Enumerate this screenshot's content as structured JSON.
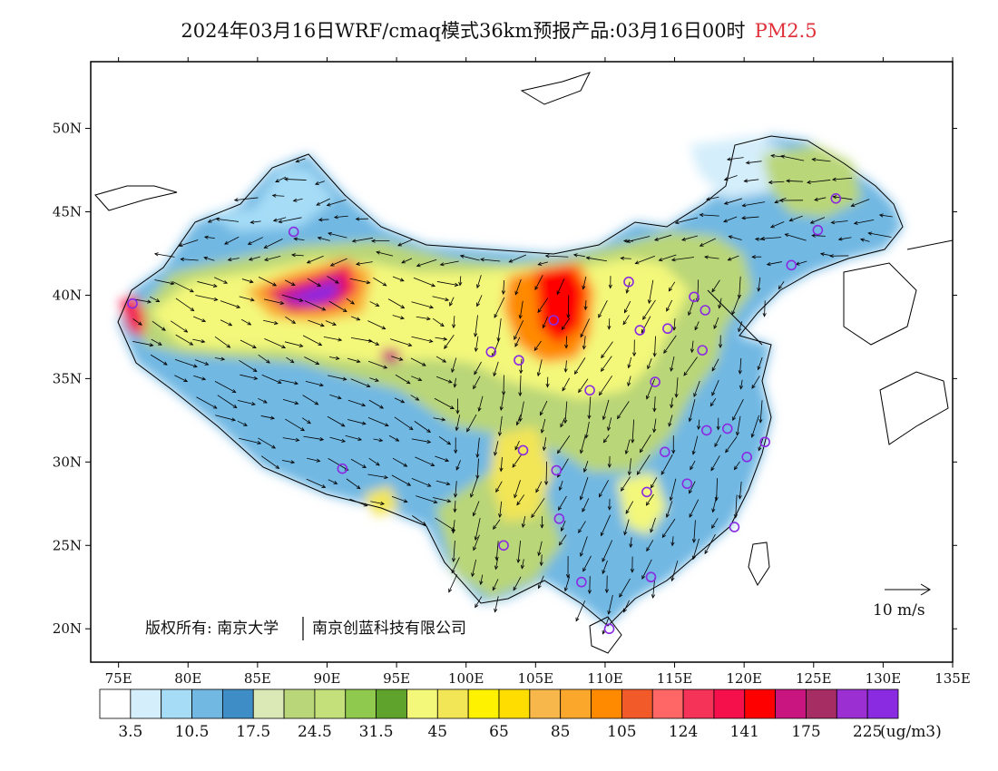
{
  "header": {
    "title": "2024年03月16日WRF/cmaq模式36km预报产品:03月16日00时",
    "variable": "PM2.5"
  },
  "chart_data": {
    "type": "heatmap",
    "title": "2024年03月16日WRF/cmaq模式36km预报产品:03月16日00时 PM2.5",
    "variable": "PM2.5",
    "units": "(ug/m3)",
    "xlim": [
      73,
      135
    ],
    "ylim": [
      18,
      54
    ],
    "x_ticks": [
      "75E",
      "80E",
      "85E",
      "90E",
      "95E",
      "100E",
      "105E",
      "110E",
      "115E",
      "120E",
      "125E",
      "130E",
      "135E"
    ],
    "y_ticks": [
      "20N",
      "25N",
      "30N",
      "35N",
      "40N",
      "45N",
      "50N"
    ],
    "colorbar": {
      "colors": [
        "#ffffff",
        "#d4eefb",
        "#a6dcf6",
        "#71b8e3",
        "#3f8dc6",
        "#dbe9b6",
        "#b9d678",
        "#c3e07a",
        "#8fc94e",
        "#5fa32d",
        "#f3f87a",
        "#f2e556",
        "#fff200",
        "#ffdd00",
        "#f7b74a",
        "#faa72c",
        "#ff8a00",
        "#f25a2a",
        "#ff6666",
        "#f53359",
        "#f50f4b",
        "#ff0000",
        "#c9157f",
        "#a62d64",
        "#9b2fd1",
        "#8a2be2"
      ],
      "tick_labels": [
        "3.5",
        "10.5",
        "17.5",
        "24.5",
        "31.5",
        "45",
        "65",
        "85",
        "105",
        "124",
        "141",
        "175",
        "225"
      ],
      "units": "(ug/m3)"
    },
    "stations": [
      [
        87.6,
        43.8
      ],
      [
        76.0,
        39.5
      ],
      [
        91.1,
        29.6
      ],
      [
        101.8,
        36.6
      ],
      [
        103.8,
        36.1
      ],
      [
        106.3,
        38.5
      ],
      [
        108.9,
        34.3
      ],
      [
        106.5,
        29.5
      ],
      [
        104.1,
        30.7
      ],
      [
        106.7,
        26.6
      ],
      [
        102.7,
        25.0
      ],
      [
        108.3,
        22.8
      ],
      [
        110.3,
        20.0
      ],
      [
        113.3,
        23.1
      ],
      [
        113.0,
        28.2
      ],
      [
        114.3,
        30.6
      ],
      [
        115.9,
        28.7
      ],
      [
        117.3,
        31.9
      ],
      [
        118.8,
        32.0
      ],
      [
        120.2,
        30.3
      ],
      [
        121.5,
        31.2
      ],
      [
        119.3,
        26.1
      ],
      [
        113.6,
        34.8
      ],
      [
        112.5,
        37.9
      ],
      [
        114.5,
        38.0
      ],
      [
        111.7,
        40.8
      ],
      [
        116.4,
        39.9
      ],
      [
        117.2,
        39.1
      ],
      [
        117.0,
        36.7
      ],
      [
        123.4,
        41.8
      ],
      [
        125.3,
        43.9
      ],
      [
        126.6,
        45.8
      ]
    ],
    "wind_scale_label": "10 m/s",
    "annotation": "版权所有: 南京大学 | 南京创蓝科技有限公司"
  },
  "copyright": {
    "part1": "版权所有: 南京大学",
    "part2": "南京创蓝科技有限公司"
  }
}
